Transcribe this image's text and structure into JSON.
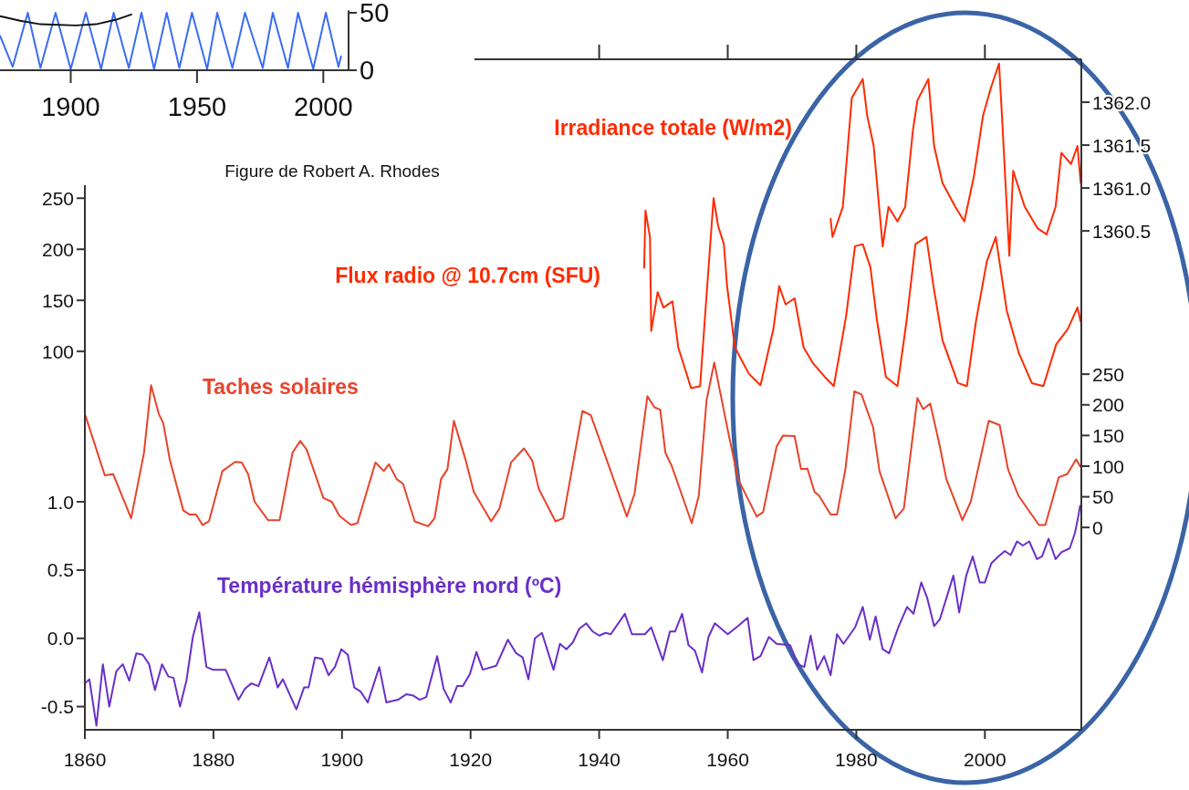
{
  "chart_data": [
    {
      "type": "line",
      "xlim": [
        1872,
        2010
      ],
      "xticks": [
        1900,
        1950,
        2000
      ],
      "ylim": [
        0,
        52
      ],
      "yticks": [
        0,
        50
      ],
      "annotations": [
        "Figure de Robert A. Rhodes"
      ],
      "series": [
        {
          "color": "#3a6cf4",
          "x": [
            1872,
            1877,
            1883,
            1888,
            1894,
            1900,
            1906,
            1912,
            1917,
            1923,
            1928,
            1933,
            1938,
            1943,
            1948,
            1954,
            1958,
            1964,
            1969,
            1976,
            1980,
            1986,
            1990,
            1996,
            2001,
            2006,
            2007
          ],
          "values": [
            30,
            3,
            50,
            2,
            50,
            1,
            50,
            1,
            50,
            2,
            50,
            1,
            50,
            2,
            50,
            1,
            50,
            2,
            50,
            2,
            50,
            2,
            50,
            1,
            50,
            3,
            12
          ]
        },
        {
          "color": "#111111",
          "x": [
            1872,
            1880,
            1888,
            1902,
            1910,
            1918,
            1924
          ],
          "values": [
            47,
            43,
            40,
            39,
            40,
            44,
            48.5
          ]
        }
      ]
    },
    {
      "type": "line",
      "tick_labels": "y",
      "xlim": [
        1860,
        2015
      ],
      "xticks": [
        1860,
        1880,
        1900,
        1920,
        1940,
        1960,
        1980,
        2000
      ],
      "ylim": [
        60,
        386
      ],
      "yticks": [
        100,
        150,
        200,
        250
      ],
      "y2lim": [
        1358.62,
        1362.5
      ],
      "y2ticks": [
        {
          "value": 1360.5,
          "label": "1360.5"
        },
        {
          "value": 1361.0,
          "label": "1361.0"
        },
        {
          "value": 1361.5,
          "label": "1361.5"
        },
        {
          "value": 1362.0,
          "label": "1362.0"
        }
      ],
      "series": [
        {
          "name": "Irradiance totale (W/m2)",
          "axis": "y2",
          "color": "#ff2a00",
          "x": [
            1976.0,
            1976.3,
            1977.9,
            1978.6,
            1979.3,
            1981.0,
            1981.7,
            1982.7,
            1984.1,
            1985.0,
            1986.4,
            1987.6,
            1988.8,
            1989.5,
            1991.2,
            1992.1,
            1993.4,
            1995.4,
            1996.8,
            1998.3,
            1999.7,
            2000.9,
            2002.2,
            2002.7,
            2003.8,
            2004.4,
            2006.2,
            2008.2,
            2009.6,
            2011.0,
            2011.9,
            2013.4,
            2014.4,
            2014.9
          ],
          "values": [
            1360.64,
            1360.43,
            1360.78,
            1361.41,
            1362.05,
            1362.27,
            1361.84,
            1361.49,
            1360.32,
            1360.78,
            1360.61,
            1360.78,
            1361.67,
            1362.02,
            1362.27,
            1361.49,
            1361.06,
            1360.78,
            1360.61,
            1361.14,
            1361.84,
            1362.16,
            1362.45,
            1361.78,
            1360.21,
            1361.2,
            1360.78,
            1360.53,
            1360.46,
            1360.78,
            1361.41,
            1361.28,
            1361.49,
            1361.06
          ]
        },
        {
          "name": "Flux radio @ 10.7cm (SFU)",
          "color": "#ff2a00",
          "x": [
            1947.0,
            1947.2,
            1947.9,
            1948.1,
            1949.1,
            1950.0,
            1951.4,
            1952.3,
            1954.3,
            1955.7,
            1956.6,
            1957.8,
            1958.5,
            1959.4,
            1959.9,
            1961.1,
            1963.3,
            1965.1,
            1967.1,
            1968.0,
            1969.0,
            1970.4,
            1971.8,
            1973.2,
            1975.1,
            1976.5,
            1978.4,
            1979.8,
            1981.0,
            1982.2,
            1983.2,
            1984.6,
            1986.4,
            1987.8,
            1989.2,
            1990.9,
            1992.0,
            1993.4,
            1995.8,
            1997.2,
            1998.6,
            2000.3,
            2001.7,
            2003.4,
            2005.3,
            2007.3,
            2009.1,
            2011.1,
            2012.9,
            2014.4,
            2014.9
          ],
          "values": [
            182,
            238,
            212,
            120,
            158,
            143,
            149,
            104,
            64,
            66,
            146,
            250,
            223,
            205,
            164,
            104,
            78,
            67,
            122,
            164,
            146,
            152,
            104,
            89,
            75,
            66,
            134,
            203,
            205,
            182,
            131,
            75,
            66,
            129,
            205,
            212,
            164,
            111,
            69,
            66,
            129,
            188,
            212,
            140,
            98,
            69,
            66,
            107,
            122,
            143,
            129
          ]
        }
      ]
    },
    {
      "type": "line",
      "xlim": [
        1860,
        2015
      ],
      "xticks": [
        1860,
        1880,
        1900,
        1920,
        1940,
        1960,
        1980,
        2000
      ],
      "ylim": [
        -0.67,
        2.07
      ],
      "yticks": [
        {
          "value": -0.5,
          "label": "-0.5"
        },
        {
          "value": 0,
          "label": "0.0"
        },
        {
          "value": 0.5,
          "label": "0.5"
        },
        {
          "value": 1,
          "label": "1.0"
        }
      ],
      "y2lim": [
        -330,
        280
      ],
      "y2ticks": [
        0,
        50,
        100,
        150,
        200,
        250
      ],
      "series": [
        {
          "name": "Taches solaires",
          "axis": "y2",
          "color": "#e8432a",
          "x": [
            1860.1,
            1863.1,
            1864.4,
            1867.2,
            1869.2,
            1870.3,
            1871.5,
            1872.2,
            1873.2,
            1875.3,
            1876.3,
            1877.3,
            1878.3,
            1879.3,
            1881.4,
            1883.4,
            1884.4,
            1885.4,
            1886.4,
            1888.5,
            1890.3,
            1892.3,
            1893.5,
            1894.5,
            1897.1,
            1898.4,
            1899.6,
            1901.4,
            1902.4,
            1905.2,
            1906.5,
            1907.3,
            1908.5,
            1909.5,
            1911.3,
            1913.4,
            1914.4,
            1915.4,
            1916.4,
            1917.4,
            1919.2,
            1920.5,
            1923.2,
            1924.5,
            1926.3,
            1928.3,
            1929.6,
            1930.6,
            1933.2,
            1934.4,
            1937.4,
            1938.7,
            1944.3,
            1945.5,
            1947.5,
            1948.6,
            1949.5,
            1950.3,
            1951.3,
            1954.4,
            1955.5,
            1956.7,
            1957.9,
            1960.0,
            1961.6,
            1964.5,
            1965.5,
            1967.6,
            1968.6,
            1970.4,
            1971.4,
            1972.4,
            1973.5,
            1974.2,
            1976.0,
            1977.0,
            1978.3,
            1979.7,
            1980.8,
            1982.6,
            1983.6,
            1986.1,
            1987.4,
            1989.5,
            1990.4,
            1991.5,
            1993.0,
            1994.0,
            1996.5,
            1997.8,
            2000.6,
            2002.3,
            2003.6,
            2005.2,
            2008.4,
            2009.4,
            2011.5,
            2012.8,
            2014.2,
            2014.8
          ],
          "values": [
            182,
            85,
            87,
            15,
            122,
            232,
            185,
            170,
            111,
            28,
            21,
            21,
            4,
            10,
            92,
            107,
            106,
            87,
            42,
            12,
            12,
            122,
            141,
            127,
            48,
            42,
            19,
            4,
            7,
            106,
            92,
            103,
            79,
            71,
            10,
            2,
            15,
            79,
            95,
            174,
            111,
            58,
            10,
            31,
            106,
            129,
            109,
            63,
            10,
            15,
            190,
            183,
            18,
            55,
            214,
            196,
            192,
            122,
            100,
            7,
            52,
            207,
            269,
            159,
            79,
            18,
            25,
            132,
            150,
            149,
            95,
            96,
            58,
            52,
            21,
            21,
            95,
            222,
            217,
            164,
            92,
            15,
            31,
            211,
            193,
            202,
            132,
            79,
            12,
            42,
            174,
            167,
            95,
            52,
            4,
            4,
            82,
            87,
            111,
            100
          ]
        },
        {
          "name": "Température hémisphère nord (ºC)",
          "color": "#6a2fc8",
          "x": [
            1860.0,
            1860.7,
            1861.8,
            1862.8,
            1863.8,
            1864.9,
            1865.9,
            1866.9,
            1868.0,
            1869.0,
            1870.0,
            1870.9,
            1872.0,
            1873.0,
            1873.8,
            1874.8,
            1875.8,
            1876.8,
            1877.8,
            1878.9,
            1879.9,
            1881.9,
            1883.9,
            1884.9,
            1885.9,
            1887.0,
            1888.7,
            1890.0,
            1890.8,
            1892.9,
            1894.1,
            1894.8,
            1895.8,
            1896.9,
            1897.9,
            1898.9,
            1899.9,
            1900.9,
            1901.9,
            1902.9,
            1904.0,
            1905.8,
            1906.9,
            1908.7,
            1910.0,
            1911.1,
            1912.1,
            1913.1,
            1914.8,
            1915.8,
            1916.9,
            1917.9,
            1918.8,
            1919.9,
            1920.9,
            1921.9,
            1924.0,
            1925.8,
            1927.1,
            1928.1,
            1929.0,
            1930.0,
            1931.1,
            1932.9,
            1933.9,
            1934.9,
            1935.9,
            1936.9,
            1938.0,
            1939.0,
            1940.0,
            1941.0,
            1941.8,
            1944.0,
            1945.1,
            1947.1,
            1948.1,
            1949.9,
            1951.0,
            1951.8,
            1952.9,
            1953.9,
            1954.9,
            1956.0,
            1957.0,
            1958.0,
            1960.0,
            1961.6,
            1963.1,
            1964.0,
            1965.1,
            1966.4,
            1967.6,
            1969.7,
            1970.9,
            1971.9,
            1972.9,
            1973.9,
            1975.0,
            1976.0,
            1977.0,
            1978.0,
            1979.8,
            1981.0,
            1982.1,
            1983.0,
            1984.1,
            1985.1,
            1986.6,
            1987.9,
            1988.9,
            1990.1,
            1991.0,
            1992.1,
            1993.0,
            1995.1,
            1996.0,
            1997.1,
            1998.1,
            1999.2,
            2000.0,
            2001.0,
            2002.1,
            2003.1,
            2004.0,
            2005.0,
            2005.9,
            2006.9,
            2008.1,
            2008.9,
            2009.9,
            2011.0,
            2011.9,
            2013.2,
            2014.0,
            2014.6,
            2014.8
          ],
          "values": [
            -0.33,
            -0.3,
            -0.64,
            -0.19,
            -0.5,
            -0.24,
            -0.19,
            -0.31,
            -0.11,
            -0.12,
            -0.19,
            -0.38,
            -0.19,
            -0.28,
            -0.29,
            -0.5,
            -0.31,
            0.01,
            0.19,
            -0.21,
            -0.23,
            -0.23,
            -0.45,
            -0.37,
            -0.33,
            -0.35,
            -0.14,
            -0.36,
            -0.3,
            -0.52,
            -0.36,
            -0.36,
            -0.14,
            -0.15,
            -0.27,
            -0.21,
            -0.08,
            -0.12,
            -0.36,
            -0.39,
            -0.47,
            -0.21,
            -0.47,
            -0.45,
            -0.41,
            -0.42,
            -0.45,
            -0.43,
            -0.13,
            -0.37,
            -0.47,
            -0.35,
            -0.35,
            -0.26,
            -0.1,
            -0.23,
            -0.2,
            -0.01,
            -0.11,
            -0.14,
            -0.3,
            0.0,
            0.04,
            -0.23,
            -0.04,
            -0.08,
            -0.03,
            0.07,
            0.11,
            0.05,
            0.02,
            0.04,
            0.03,
            0.18,
            0.03,
            0.03,
            0.08,
            -0.16,
            0.05,
            0.05,
            0.18,
            -0.05,
            -0.09,
            -0.25,
            0.01,
            0.11,
            0.03,
            0.09,
            0.15,
            -0.16,
            -0.13,
            0.01,
            -0.04,
            -0.05,
            -0.19,
            -0.21,
            0.02,
            -0.23,
            -0.13,
            -0.27,
            0.03,
            -0.04,
            0.08,
            0.23,
            -0.01,
            0.16,
            -0.08,
            -0.11,
            0.09,
            0.23,
            0.18,
            0.41,
            0.3,
            0.09,
            0.14,
            0.46,
            0.19,
            0.46,
            0.6,
            0.41,
            0.41,
            0.55,
            0.6,
            0.64,
            0.61,
            0.71,
            0.68,
            0.71,
            0.58,
            0.6,
            0.73,
            0.58,
            0.63,
            0.66,
            0.77,
            0.91,
            0.97
          ]
        }
      ]
    }
  ]
}
